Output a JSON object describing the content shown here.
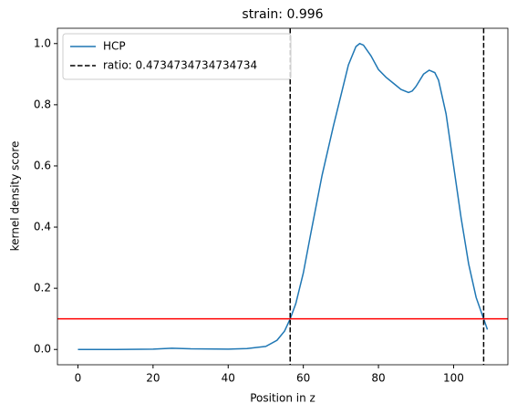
{
  "chart_data": {
    "type": "line",
    "title": "strain: 0.996",
    "xlabel": "Position in z",
    "ylabel": "kernel density score",
    "x": [
      0,
      10,
      20,
      25,
      30,
      40,
      45,
      50,
      53,
      55,
      56.5,
      58,
      60,
      62,
      65,
      68,
      70,
      72,
      74,
      75,
      76,
      78,
      80,
      82,
      84,
      86,
      88,
      89,
      90,
      92,
      93.5,
      95,
      96,
      98,
      100,
      102,
      104,
      106,
      108,
      109
    ],
    "series": [
      {
        "name": "HCP",
        "color": "#1f77b4",
        "values": [
          0,
          0,
          0.001,
          0.004,
          0.002,
          0.001,
          0.003,
          0.01,
          0.03,
          0.06,
          0.1,
          0.15,
          0.25,
          0.38,
          0.57,
          0.73,
          0.83,
          0.93,
          0.99,
          1.0,
          0.995,
          0.96,
          0.915,
          0.89,
          0.87,
          0.85,
          0.84,
          0.845,
          0.86,
          0.9,
          0.913,
          0.905,
          0.88,
          0.77,
          0.6,
          0.43,
          0.28,
          0.17,
          0.1,
          0.065
        ]
      }
    ],
    "vlines": {
      "name": "ratio: 0.4734734734734734",
      "color": "#000000",
      "values": [
        56.5,
        108
      ]
    },
    "hline": {
      "color": "#ff0000",
      "value": 0.1
    },
    "xlim": [
      -5.45,
      114.45
    ],
    "xticks": [
      0,
      20,
      40,
      60,
      80,
      100
    ],
    "ylim": [
      -0.05,
      1.05
    ],
    "yticks": [
      {
        "value": 0,
        "label": "0.0"
      },
      {
        "value": 0.2,
        "label": "0.2"
      },
      {
        "value": 0.4,
        "label": "0.4"
      },
      {
        "value": 0.6,
        "label": "0.6"
      },
      {
        "value": 0.8,
        "label": "0.8"
      },
      {
        "value": 1.0,
        "label": "1.0"
      }
    ],
    "legend": "upper left"
  }
}
